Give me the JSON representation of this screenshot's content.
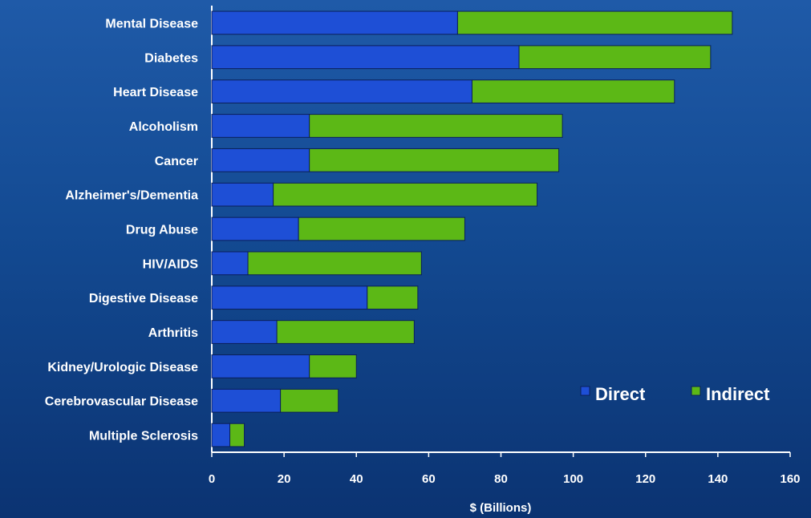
{
  "chart_data": {
    "type": "bar",
    "orientation": "horizontal",
    "stacked": true,
    "categories": [
      "Mental Disease",
      "Diabetes",
      "Heart Disease",
      "Alcoholism",
      "Cancer",
      "Alzheimer's/Dementia",
      "Drug Abuse",
      "HIV/AIDS",
      "Digestive Disease",
      "Arthritis",
      "Kidney/Urologic Disease",
      "Cerebrovascular Disease",
      "Multiple Sclerosis"
    ],
    "series": [
      {
        "name": "Direct",
        "color": "#1e4fd6",
        "values": [
          68,
          85,
          72,
          27,
          27,
          17,
          24,
          10,
          43,
          18,
          27,
          19,
          5
        ]
      },
      {
        "name": "Indirect",
        "color": "#5cb816",
        "values": [
          76,
          53,
          56,
          70,
          69,
          73,
          46,
          48,
          14,
          38,
          13,
          16,
          4
        ]
      }
    ],
    "xlim": [
      0,
      160
    ],
    "xticks": [
      "0",
      "20",
      "40",
      "60",
      "80",
      "100",
      "120",
      "140",
      "160"
    ],
    "xlabel": "$ (Billions)",
    "legend": {
      "position": "bottom-right",
      "labels": [
        "Direct",
        "Indirect"
      ]
    }
  }
}
